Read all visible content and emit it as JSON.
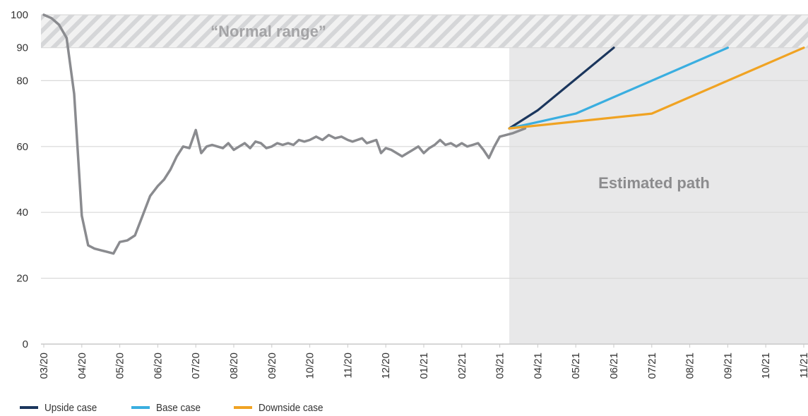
{
  "chart_data": {
    "type": "line",
    "title": "",
    "xlabel": "",
    "ylabel": "",
    "ylim": [
      0,
      100
    ],
    "y_ticks": [
      "0",
      "20",
      "40",
      "60",
      "80",
      "90",
      "100"
    ],
    "y_tick_values": [
      0,
      20,
      40,
      60,
      80,
      90,
      100
    ],
    "x_ticks": [
      "03/20",
      "04/20",
      "05/20",
      "06/20",
      "07/20",
      "08/20",
      "09/20",
      "10/20",
      "11/20",
      "12/20",
      "01/21",
      "02/21",
      "03/21",
      "04/21",
      "05/21",
      "06/21",
      "07/21",
      "08/21",
      "09/21",
      "10/21",
      "11/21"
    ],
    "grid": true,
    "legend_position": "bottom-left",
    "annotations": {
      "normal_range_label": "“Normal range”",
      "normal_range": [
        90,
        100
      ],
      "estimated_label": "Estimated path",
      "estimated_start": "03/21"
    },
    "series": [
      {
        "key": "historical",
        "color": "#8a8b8f",
        "x": [
          "03/20",
          "03/20",
          "03/20",
          "03/20",
          "03/20",
          "04/20",
          "04/20",
          "04/20",
          "04/20",
          "04/20",
          "04/20",
          "05/20",
          "05/20",
          "05/20",
          "05/20",
          "05/20",
          "06/20",
          "06/20",
          "06/20",
          "06/20",
          "06/20",
          "06/20",
          "07/20",
          "07/20",
          "07/20",
          "07/20",
          "07/20",
          "07/20",
          "07/20",
          "08/20",
          "08/20",
          "08/20",
          "08/20",
          "08/20",
          "08/20",
          "08/20",
          "09/20",
          "09/20",
          "09/20",
          "09/20",
          "09/20",
          "09/20",
          "09/20",
          "10/20",
          "10/20",
          "10/20",
          "10/20",
          "10/20",
          "10/20",
          "11/20",
          "11/20",
          "11/20",
          "11/20",
          "11/20",
          "11/20",
          "11/20",
          "11/20",
          "12/20",
          "12/20",
          "12/20",
          "12/20",
          "12/20",
          "12/20",
          "12/20",
          "01/21",
          "01/21",
          "01/21",
          "01/21",
          "01/21",
          "01/21",
          "01/21",
          "02/21",
          "02/21",
          "02/21",
          "02/21",
          "02/21",
          "02/21",
          "02/21",
          "03/21",
          "03/21",
          "03/21"
        ],
        "values": [
          100,
          99,
          97,
          93,
          76,
          39,
          30,
          29,
          28.5,
          28,
          27.5,
          31,
          31.5,
          33,
          39,
          45,
          48,
          50,
          53,
          57,
          60,
          59.5,
          65,
          58,
          60,
          60.5,
          60,
          59.5,
          61,
          59,
          60,
          61,
          59.5,
          61.5,
          61,
          59.5,
          60,
          61,
          60.5,
          61,
          60.5,
          62,
          61.5,
          62,
          63,
          62,
          63.5,
          62.5,
          63,
          62,
          61.5,
          62,
          62.5,
          61,
          61.5,
          62,
          58,
          59.5,
          59,
          58,
          57,
          58,
          59,
          60,
          58,
          59.5,
          60.5,
          62,
          60.5,
          61,
          60,
          61,
          60,
          60.5,
          61,
          59,
          56.5,
          60,
          63,
          64,
          65.5
        ]
      },
      {
        "name": "Upside case",
        "color": "#1b365d",
        "x": [
          "03/21",
          "04/21",
          "06/21"
        ],
        "values": [
          65.5,
          71,
          90
        ]
      },
      {
        "name": "Base case",
        "color": "#3aaee0",
        "x": [
          "03/21",
          "05/21",
          "09/21"
        ],
        "values": [
          65.5,
          70,
          90
        ]
      },
      {
        "name": "Downside case",
        "color": "#f0a323",
        "x": [
          "03/21",
          "07/21",
          "11/21"
        ],
        "values": [
          65.5,
          70,
          90
        ]
      }
    ]
  }
}
